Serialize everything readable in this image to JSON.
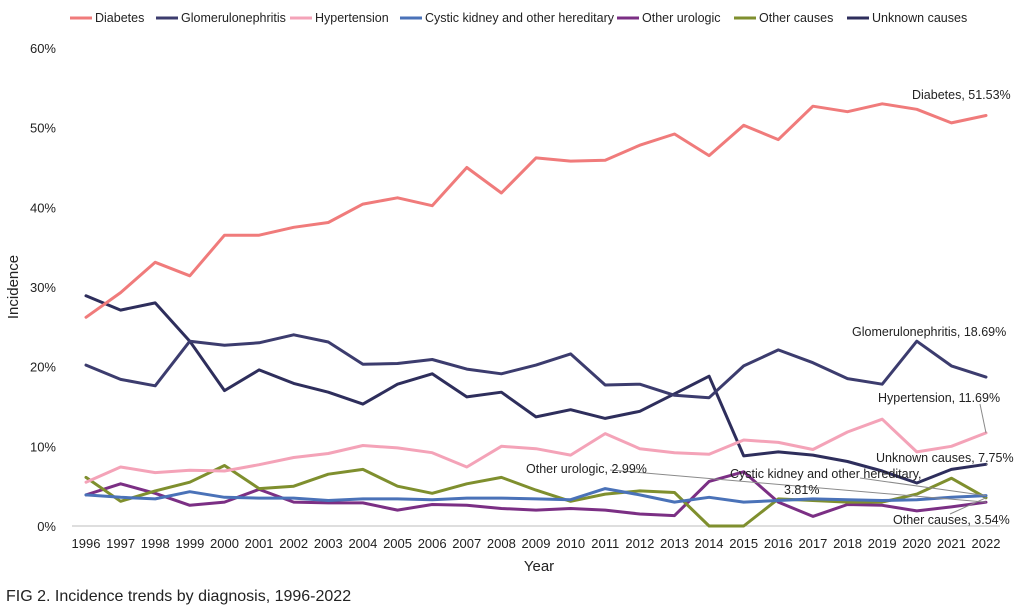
{
  "caption": "FIG 2. Incidence trends by diagnosis, 1996-2022",
  "chart_data": {
    "type": "line",
    "xlabel": "Year",
    "ylabel": "Incidence",
    "ylim": [
      0,
      60
    ],
    "yticks": [
      0,
      10,
      20,
      30,
      40,
      50,
      60
    ],
    "ytick_suffix": "%",
    "grid": false,
    "legend_position": "top",
    "x": [
      "1996",
      "1997",
      "1998",
      "1999",
      "2000",
      "2001",
      "2002",
      "2003",
      "2004",
      "2005",
      "2006",
      "2007",
      "2008",
      "2009",
      "2010",
      "2011",
      "2012",
      "2013",
      "2014",
      "2015",
      "2016",
      "2017",
      "2018",
      "2019",
      "2020",
      "2021",
      "2022"
    ],
    "series": [
      {
        "name": "Diabetes",
        "color": "#f07b7b",
        "values": [
          26.2,
          29.3,
          33.1,
          31.4,
          36.5,
          36.5,
          37.5,
          38.1,
          40.4,
          41.2,
          40.2,
          45.0,
          41.8,
          46.2,
          45.8,
          45.9,
          47.8,
          49.2,
          46.5,
          50.3,
          48.5,
          52.7,
          52.0,
          53.0,
          52.3,
          50.6,
          51.53
        ]
      },
      {
        "name": "Glomerulonephritis",
        "color": "#3c3c6e",
        "values": [
          20.2,
          18.4,
          17.6,
          23.2,
          22.7,
          23.0,
          24.0,
          23.1,
          20.3,
          20.4,
          20.9,
          19.7,
          19.1,
          20.2,
          21.6,
          17.7,
          17.8,
          16.4,
          16.1,
          20.1,
          22.1,
          20.5,
          18.5,
          17.8,
          23.2,
          20.1,
          18.69
        ]
      },
      {
        "name": "Hypertension",
        "color": "#f4a3b8",
        "values": [
          5.5,
          7.4,
          6.7,
          7.0,
          6.9,
          7.7,
          8.6,
          9.1,
          10.1,
          9.8,
          9.2,
          7.4,
          10.0,
          9.7,
          8.9,
          11.6,
          9.7,
          9.2,
          9.0,
          10.8,
          10.5,
          9.6,
          11.8,
          13.4,
          9.3,
          10.0,
          11.69
        ]
      },
      {
        "name": "Cystic kidney and other hereditary",
        "color": "#4a72b8",
        "values": [
          3.9,
          3.6,
          3.4,
          4.3,
          3.6,
          3.5,
          3.5,
          3.2,
          3.4,
          3.4,
          3.3,
          3.5,
          3.5,
          3.4,
          3.3,
          4.7,
          3.9,
          3.0,
          3.6,
          3.0,
          3.2,
          3.4,
          3.3,
          3.2,
          3.3,
          3.6,
          3.81
        ]
      },
      {
        "name": "Other urologic",
        "color": "#7b2f84",
        "values": [
          3.9,
          5.3,
          4.1,
          2.6,
          3.0,
          4.6,
          3.0,
          2.9,
          2.9,
          2.0,
          2.7,
          2.6,
          2.2,
          2.0,
          2.2,
          2.0,
          1.5,
          1.3,
          5.6,
          6.8,
          3.0,
          1.2,
          2.7,
          2.6,
          1.9,
          2.4,
          2.99
        ]
      },
      {
        "name": "Other causes",
        "color": "#7f8f2e",
        "values": [
          6.1,
          3.1,
          4.4,
          5.5,
          7.6,
          4.7,
          5.0,
          6.5,
          7.1,
          5.0,
          4.1,
          5.3,
          6.1,
          4.5,
          3.1,
          4.0,
          4.4,
          4.2,
          0.0,
          0.0,
          3.4,
          3.2,
          3.0,
          3.0,
          4.0,
          6.0,
          3.54
        ]
      },
      {
        "name": "Unknown causes",
        "color": "#2e2e5c",
        "values": [
          28.9,
          27.1,
          28.0,
          23.2,
          17.0,
          19.6,
          17.9,
          16.8,
          15.3,
          17.8,
          19.1,
          16.2,
          16.8,
          13.7,
          14.6,
          13.5,
          14.4,
          16.6,
          18.8,
          8.8,
          9.3,
          8.9,
          8.1,
          6.9,
          5.4,
          7.1,
          7.75
        ]
      }
    ],
    "annotations": [
      {
        "text": "Diabetes, 51.53%"
      },
      {
        "text": "Glomerulonephritis, 18.69%"
      },
      {
        "text": "Hypertension, 11.69%"
      },
      {
        "text": "Unknown causes, 7.75%"
      },
      {
        "text": "Other urologic, 2.99%"
      },
      {
        "text": "Cystic kidney and other hereditary,"
      },
      {
        "text": "3.81%"
      },
      {
        "text": "Other causes, 3.54%"
      }
    ]
  }
}
